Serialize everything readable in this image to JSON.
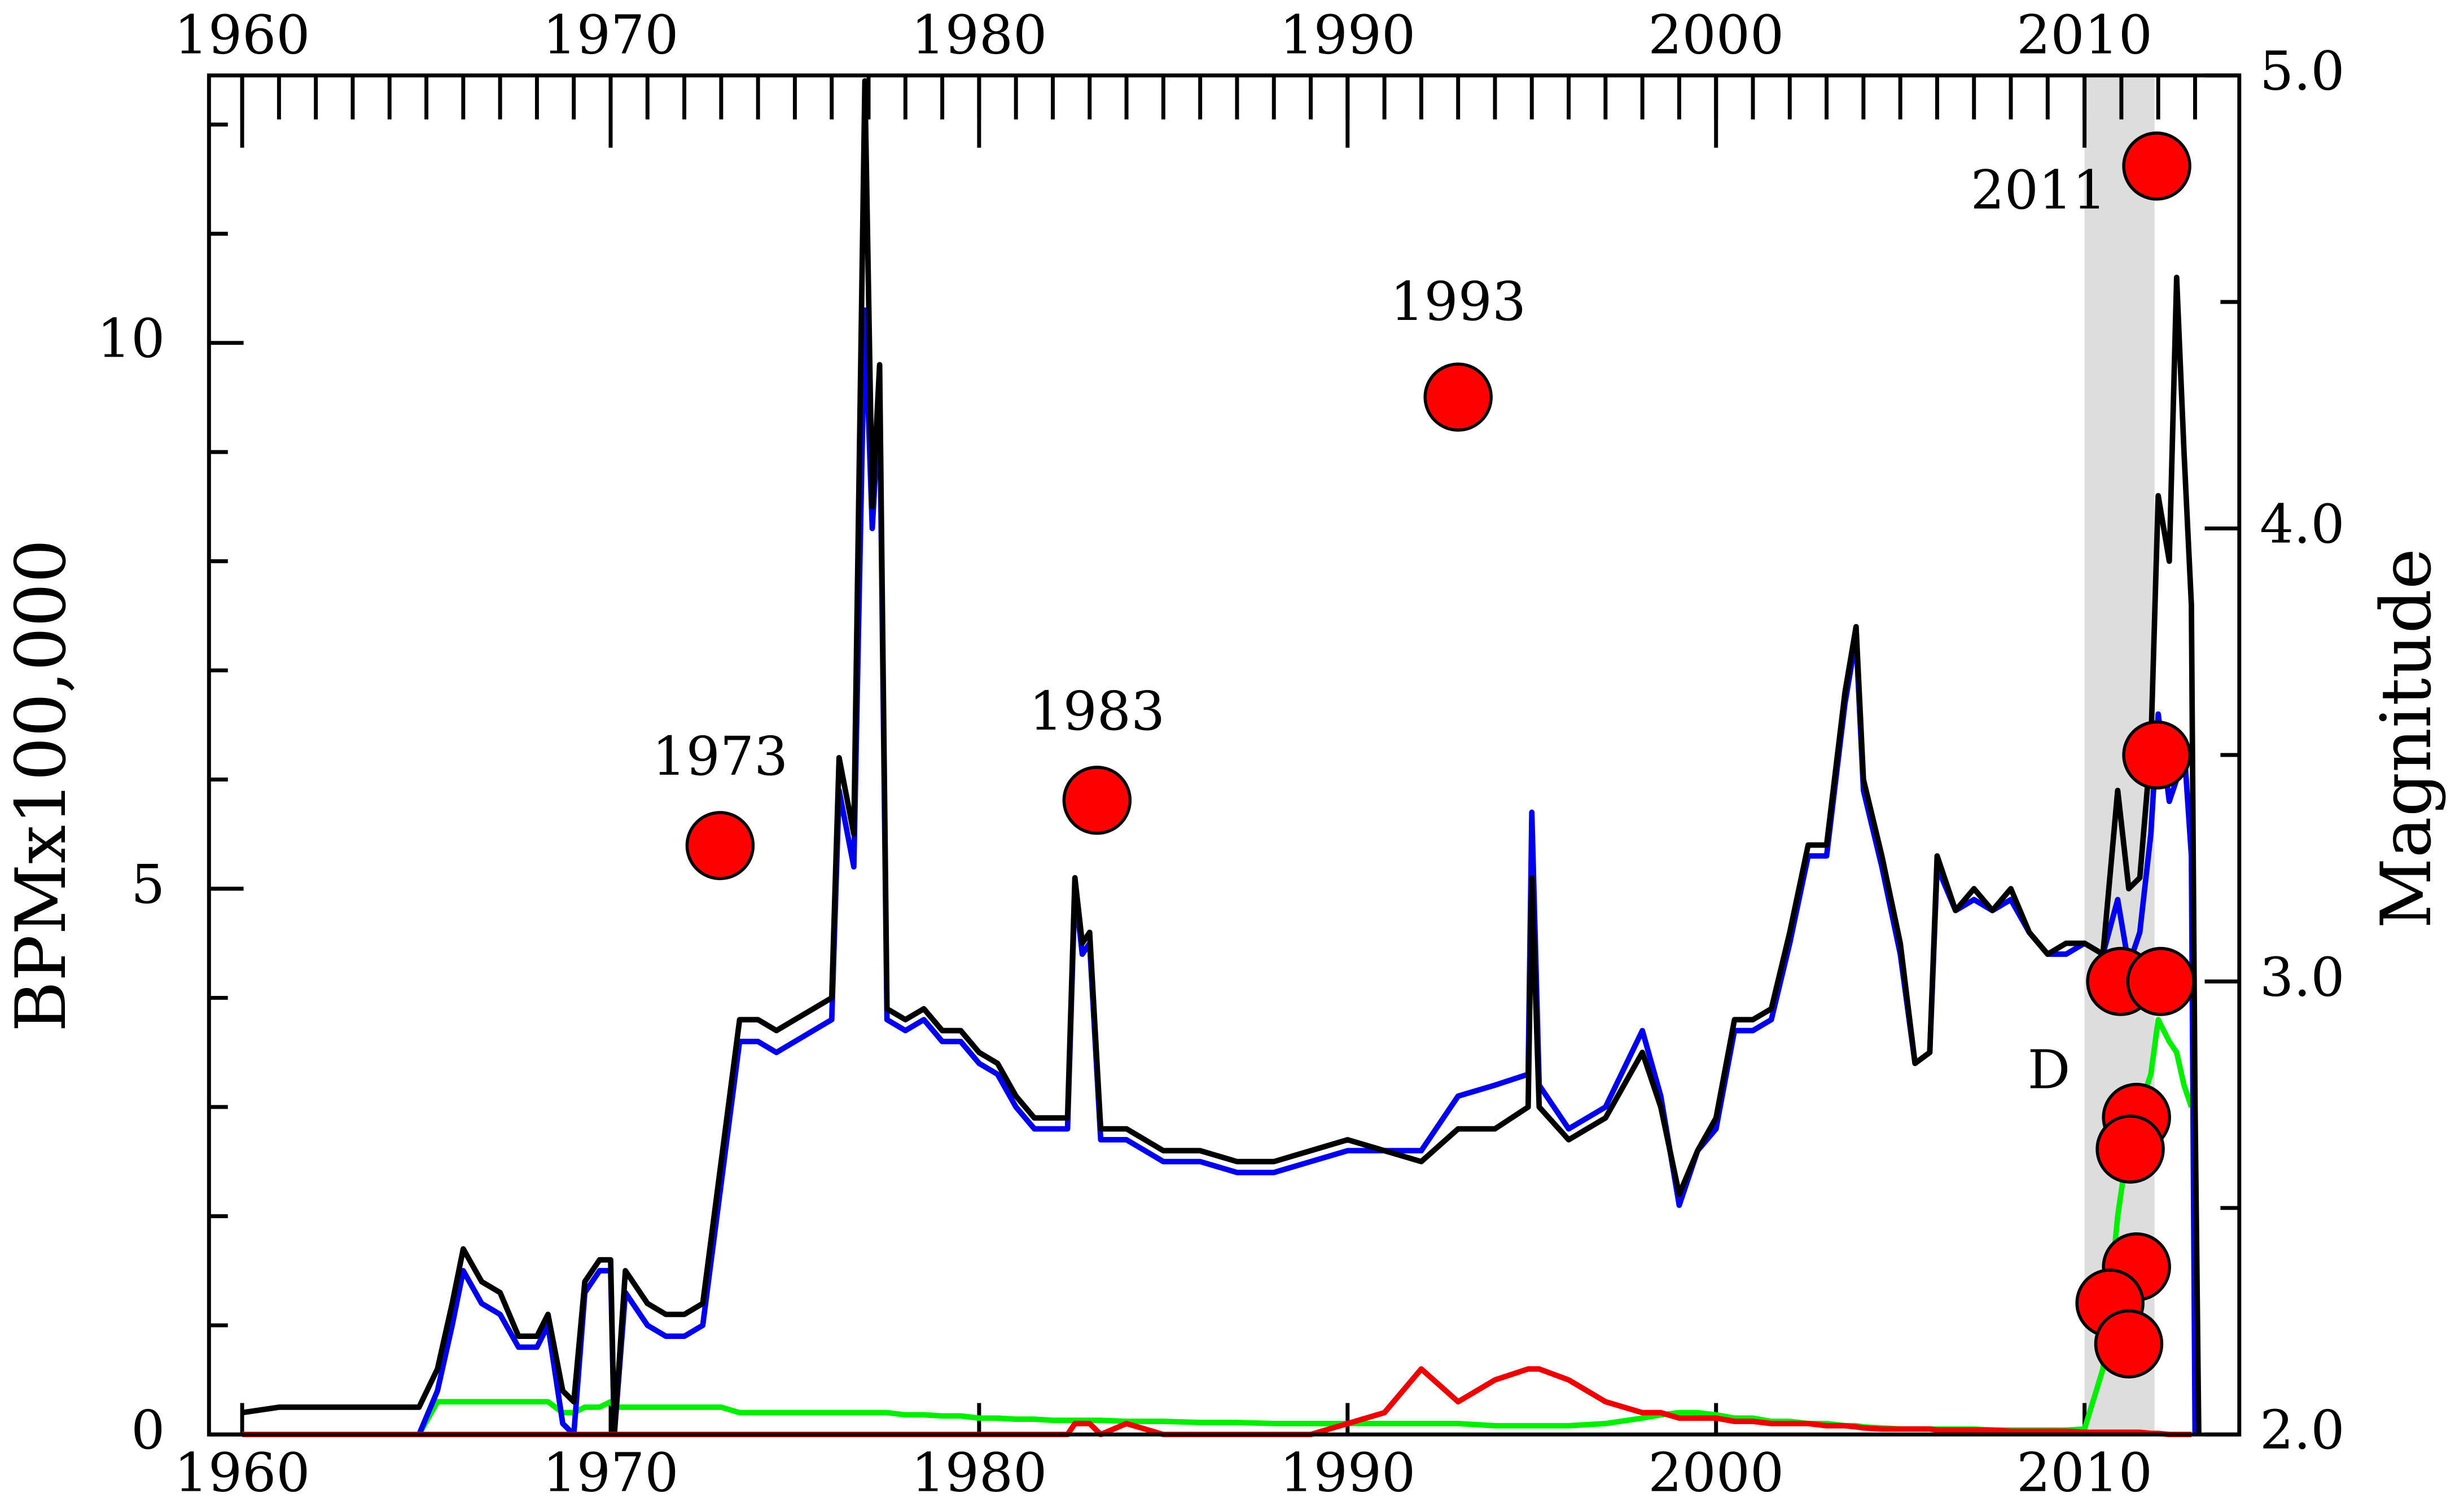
{
  "chart_data": {
    "type": "line",
    "y_label": "BPMx100,000",
    "y2_label": "Magnitude",
    "xlim": [
      1959.1,
      2014.2
    ],
    "xticks": [
      1960,
      1970,
      1980,
      1990,
      2000,
      2010
    ],
    "xminor": [
      1960,
      1961,
      1962,
      1963,
      1964,
      1965,
      1966,
      1967,
      1968,
      1969,
      1970,
      1971,
      1972,
      1973,
      1974,
      1975,
      1976,
      1977,
      1978,
      1979,
      1980,
      1981,
      1982,
      1983,
      1984,
      1985,
      1986,
      1987,
      1988,
      1989,
      1990,
      1991,
      1992,
      1993,
      1994,
      1995,
      1996,
      1997,
      1998,
      1999,
      2000,
      2001,
      2002,
      2003,
      2004,
      2005,
      2006,
      2007,
      2008,
      2009,
      2010,
      2011,
      2012,
      2013
    ],
    "ylim": [
      0,
      12.45
    ],
    "yticks": [
      0,
      5,
      10
    ],
    "yminor": [
      1,
      2,
      3,
      4,
      6,
      7,
      8,
      9,
      11,
      12
    ],
    "y2lim": [
      2,
      5
    ],
    "y2ticks": [
      {
        "value": 2,
        "label": "2.0"
      },
      {
        "value": 3,
        "label": "3.0"
      },
      {
        "value": 4,
        "label": "4.0"
      },
      {
        "value": 5,
        "label": "5.0"
      }
    ],
    "y2minor": [
      2.5,
      3.5,
      4.5
    ],
    "shade": [
      2010.0,
      2011.9
    ],
    "x": [
      1960,
      1961,
      1962,
      1963,
      1964,
      1964.8,
      1965.3,
      1965.7,
      1966,
      1966.5,
      1967,
      1967.5,
      1968,
      1968.3,
      1968.7,
      1969,
      1969.3,
      1969.7,
      1970,
      1970.1,
      1970.4,
      1971,
      1971.5,
      1972,
      1972.5,
      1973,
      1973.5,
      1974,
      1974.5,
      1975,
      1975.5,
      1976,
      1976.2,
      1976.6,
      1976.9,
      1977.1,
      1977.3,
      1977.5,
      1978,
      1978.5,
      1979,
      1979.5,
      1980,
      1980.5,
      1981,
      1981.5,
      1982,
      1982.4,
      1982.6,
      1982.8,
      1983,
      1983.3,
      1984,
      1985,
      1986,
      1987,
      1988,
      1989,
      1990,
      1991,
      1992,
      1993,
      1994,
      1994.9,
      1995,
      1995.2,
      1996,
      1997,
      1998,
      1998.5,
      1999,
      1999.5,
      2000,
      2000.5,
      2001,
      2001.5,
      2002,
      2002.5,
      2003,
      2003.5,
      2003.8,
      2004,
      2004.5,
      2005,
      2005.4,
      2005.8,
      2006,
      2006.5,
      2007,
      2007.5,
      2008,
      2008.5,
      2009,
      2009.5,
      2010,
      2010.5,
      2010.9,
      2011.2,
      2011.5,
      2011.8,
      2012,
      2012.3,
      2012.5,
      2012.7,
      2012.9,
      2013,
      2013.1
    ],
    "series": [
      {
        "color": "#00ee00",
        "values": [
          null,
          null,
          null,
          null,
          null,
          0,
          0.3,
          0.3,
          0.3,
          0.3,
          0.3,
          0.3,
          0.3,
          0.3,
          0.2,
          0.2,
          0.25,
          0.25,
          0.3,
          0.25,
          0.25,
          0.25,
          0.25,
          0.25,
          0.25,
          0.25,
          0.2,
          0.2,
          0.2,
          0.2,
          0.2,
          0.2,
          0.2,
          0.2,
          0.2,
          0.2,
          0.2,
          0.2,
          0.18,
          0.18,
          0.17,
          0.17,
          0.15,
          0.15,
          0.14,
          0.14,
          0.13,
          0.13,
          0.13,
          0.13,
          0.13,
          0.13,
          0.12,
          0.12,
          0.11,
          0.11,
          0.1,
          0.1,
          0.1,
          0.1,
          0.1,
          0.1,
          0.08,
          0.08,
          0.08,
          0.08,
          0.08,
          0.1,
          0.15,
          0.18,
          0.2,
          0.2,
          0.18,
          0.15,
          0.15,
          0.12,
          0.12,
          0.1,
          0.1,
          0.08,
          0.08,
          0.07,
          0.06,
          0.05,
          0.05,
          0.05,
          0.05,
          0.05,
          0.05,
          0.04,
          0.04,
          0.04,
          0.04,
          0.04,
          0.05,
          0.6,
          2.0,
          2.7,
          3.0,
          3.3,
          3.8,
          3.6,
          3.5,
          3.2,
          3.0,
          null,
          null
        ]
      },
      {
        "color": "#0000ee",
        "values": [
          null,
          null,
          null,
          null,
          null,
          0,
          0.4,
          1.0,
          1.5,
          1.2,
          1.1,
          0.8,
          0.8,
          1.0,
          0.1,
          0.0,
          1.3,
          1.5,
          1.5,
          0.0,
          1.3,
          1.0,
          0.9,
          0.9,
          1.0,
          2.3,
          3.6,
          3.6,
          3.5,
          3.6,
          3.7,
          3.8,
          5.9,
          5.2,
          10.3,
          8.3,
          9.5,
          3.8,
          3.7,
          3.8,
          3.6,
          3.6,
          3.4,
          3.3,
          3.0,
          2.8,
          2.8,
          2.8,
          5.0,
          4.4,
          4.5,
          2.7,
          2.7,
          2.5,
          2.5,
          2.4,
          2.4,
          2.5,
          2.6,
          2.6,
          2.6,
          3.1,
          3.2,
          3.3,
          5.7,
          3.2,
          2.8,
          3.0,
          3.7,
          3.1,
          2.1,
          2.6,
          2.8,
          3.7,
          3.7,
          3.8,
          4.5,
          5.3,
          5.3,
          6.7,
          7.3,
          5.9,
          5.2,
          4.4,
          3.4,
          3.5,
          5.2,
          4.8,
          4.9,
          4.8,
          4.9,
          4.6,
          4.4,
          4.4,
          4.5,
          4.4,
          4.9,
          4.3,
          4.6,
          5.5,
          6.6,
          5.8,
          6.0,
          6.3,
          5.3,
          0.0,
          null
        ]
      },
      {
        "color": "#000000",
        "values": [
          0.2,
          0.25,
          0.25,
          0.25,
          0.25,
          0.25,
          0.6,
          1.2,
          1.7,
          1.4,
          1.3,
          0.9,
          0.9,
          1.1,
          0.4,
          0.3,
          1.4,
          1.6,
          1.6,
          0.0,
          1.5,
          1.2,
          1.1,
          1.1,
          1.2,
          2.5,
          3.8,
          3.8,
          3.7,
          3.8,
          3.9,
          4.0,
          6.2,
          5.5,
          12.4,
          8.5,
          9.8,
          3.9,
          3.8,
          3.9,
          3.7,
          3.7,
          3.5,
          3.4,
          3.1,
          2.9,
          2.9,
          2.9,
          5.1,
          4.5,
          4.6,
          2.8,
          2.8,
          2.6,
          2.6,
          2.5,
          2.5,
          2.6,
          2.7,
          2.6,
          2.5,
          2.8,
          2.8,
          3.0,
          5.1,
          3.0,
          2.7,
          2.9,
          3.5,
          3.0,
          2.2,
          2.6,
          2.9,
          3.8,
          3.8,
          3.9,
          4.6,
          5.4,
          5.4,
          6.8,
          7.4,
          6.0,
          5.3,
          4.5,
          3.4,
          3.5,
          5.3,
          4.8,
          5.0,
          4.8,
          5.0,
          4.6,
          4.4,
          4.5,
          4.5,
          4.4,
          5.9,
          5.0,
          5.1,
          6.3,
          8.6,
          8.0,
          10.6,
          9.0,
          7.6,
          3.0,
          0.0
        ]
      },
      {
        "color": "#ee0000",
        "values": [
          0,
          0,
          0,
          0,
          0,
          0,
          0,
          0,
          0,
          0,
          0,
          0,
          0,
          0,
          0,
          0,
          0,
          0,
          0,
          0,
          0,
          0,
          0,
          0,
          0,
          0,
          0,
          0,
          0,
          0,
          0,
          0,
          0,
          0,
          0,
          0,
          0,
          0,
          0,
          0,
          0,
          0,
          0,
          0,
          0,
          0,
          0,
          0,
          0.1,
          0.1,
          0.1,
          0.0,
          0.1,
          0,
          0,
          0,
          0,
          0,
          0.1,
          0.2,
          0.6,
          0.3,
          0.5,
          0.6,
          0.6,
          0.6,
          0.5,
          0.3,
          0.2,
          0.2,
          0.15,
          0.15,
          0.15,
          0.12,
          0.12,
          0.1,
          0.1,
          0.1,
          0.08,
          0.08,
          0.07,
          0.06,
          0.05,
          0.05,
          0.05,
          0.05,
          0.04,
          0.04,
          0.04,
          0.04,
          0.03,
          0.03,
          0.03,
          0.03,
          0.02,
          0.02,
          0.02,
          0.02,
          0.02,
          0.01,
          0.01,
          0,
          0,
          0,
          0,
          null,
          null
        ]
      }
    ],
    "events": {
      "axis": "y2",
      "color": "#ff0000",
      "x": [
        1972.97,
        1983.2,
        1993.0,
        2011.96,
        2011.96,
        2010.98,
        2012.07,
        2011.41,
        2011.24,
        2011.41,
        2010.69,
        2011.2
      ],
      "values": [
        3.3,
        3.4,
        4.29,
        4.8,
        3.5,
        3.0,
        3.0,
        2.7,
        2.63,
        2.37,
        2.29,
        2.2
      ]
    },
    "annotations": [
      "1973",
      "1983",
      "1993",
      "2011",
      "D"
    ]
  }
}
